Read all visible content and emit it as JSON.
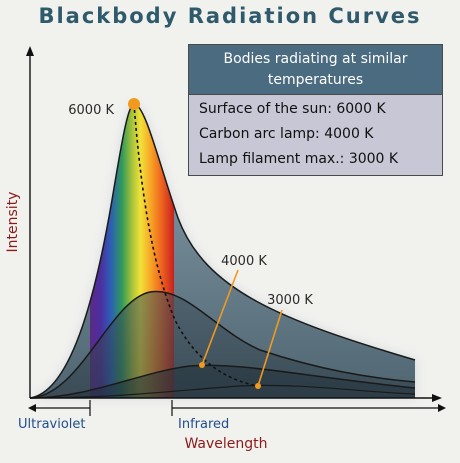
{
  "title": "Blackbody Radiation Curves",
  "legend": {
    "heading": "Bodies radiating at similar temperatures",
    "rows": [
      "Surface of the sun: 6000 K",
      "Carbon arc lamp: 4000 K",
      "Lamp filament max.: 3000 K"
    ]
  },
  "axes": {
    "y_label": "Intensity",
    "x_label": "Wavelength",
    "ultraviolet": "Ultraviolet",
    "infrared": "Infrared"
  },
  "curves": [
    {
      "label": "6000 K"
    },
    {
      "label": "4000 K"
    },
    {
      "label": "3000 K"
    }
  ],
  "colors": {
    "title": "#2f5a6c",
    "legend_header": "#4a6b80",
    "legend_body": "#c7c7d6",
    "axis_label_red": "#8b1a1a",
    "region_label_blue": "#1f4e8c",
    "peak_marker": "#f29a1e",
    "curve_fill": "#6f8592"
  }
}
